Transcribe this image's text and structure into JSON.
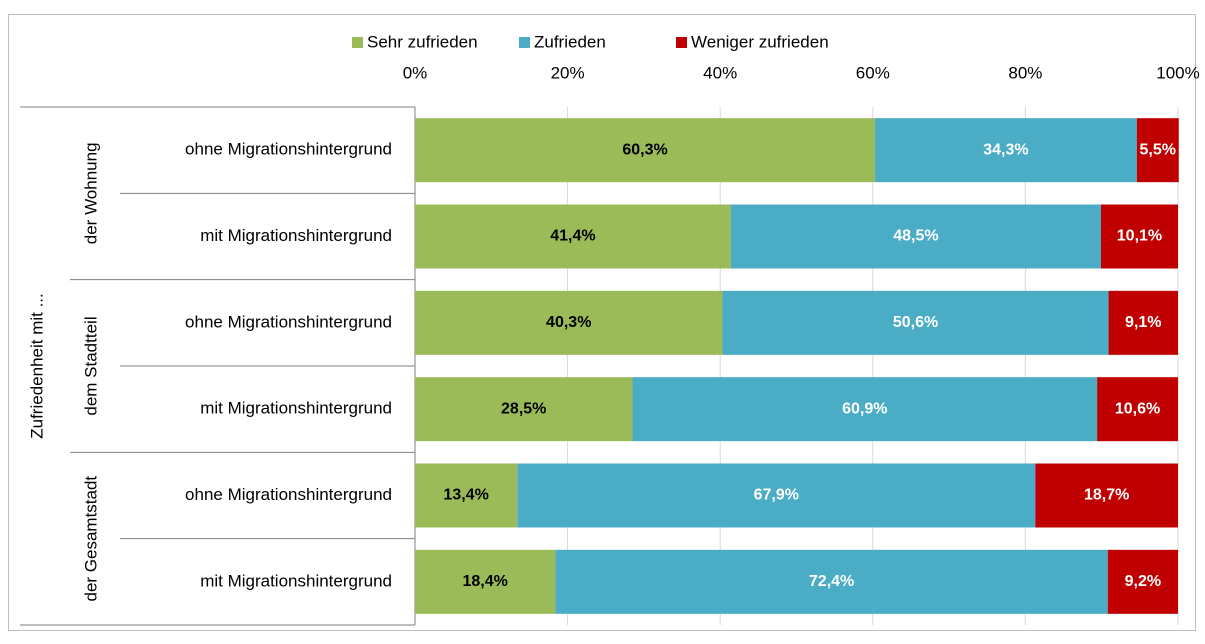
{
  "chart_data": {
    "type": "stacked-barh",
    "ylabel": "Zufriedenheit mit ...",
    "groups": [
      "der Wohnung",
      "dem Stadtteil",
      "der Gesamtstadt"
    ],
    "categories": [
      "ohne Migrationshintergrund",
      "mit Migrationshintergrund",
      "ohne Migrationshintergrund",
      "mit Migrationshintergrund",
      "ohne Migrationshintergrund",
      "mit Migrationshintergrund"
    ],
    "series": [
      {
        "name": "Sehr zufrieden",
        "color": "#9bbb59",
        "label_color": "#000000",
        "values": [
          60.3,
          41.4,
          40.3,
          28.5,
          13.4,
          18.4
        ],
        "value_labels": [
          "60,3%",
          "41,4%",
          "40,3%",
          "28,5%",
          "13,4%",
          "18,4%"
        ]
      },
      {
        "name": "Zufrieden",
        "color": "#4bacc6",
        "label_color": "#ffffff",
        "values": [
          34.3,
          48.5,
          50.6,
          60.9,
          67.9,
          72.4
        ],
        "value_labels": [
          "34,3%",
          "48,5%",
          "50,6%",
          "60,9%",
          "67,9%",
          "72,4%"
        ]
      },
      {
        "name": "Weniger zufrieden",
        "color": "#c00000",
        "label_color": "#ffffff",
        "values": [
          5.5,
          10.1,
          9.1,
          10.6,
          18.7,
          9.2
        ],
        "value_labels": [
          "5,5%",
          "10,1%",
          "9,1%",
          "10,6%",
          "18,7%",
          "9,2%"
        ]
      }
    ],
    "xlim": [
      0,
      100
    ],
    "xticks": [
      {
        "value": 0,
        "label": "0%"
      },
      {
        "value": 20,
        "label": "20%"
      },
      {
        "value": 40,
        "label": "40%"
      },
      {
        "value": 60,
        "label": "60%"
      },
      {
        "value": 80,
        "label": "80%"
      },
      {
        "value": 100,
        "label": "100%"
      }
    ],
    "grid": true,
    "legend": "top"
  }
}
